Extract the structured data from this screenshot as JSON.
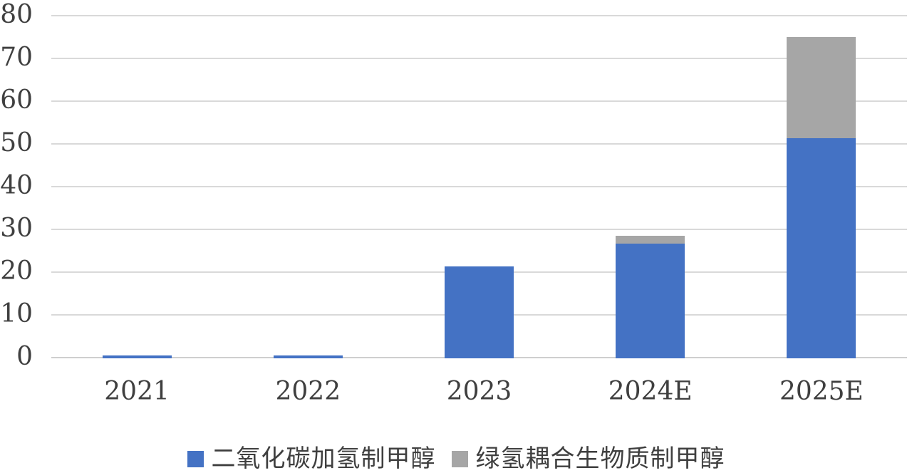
{
  "chart_data": {
    "type": "bar",
    "stacked": true,
    "title": "",
    "xlabel": "",
    "ylabel": "",
    "categories": [
      "2021",
      "2022",
      "2023",
      "2024E",
      "2025E"
    ],
    "series": [
      {
        "name": "二氧化碳加氢制甲醇",
        "color": "#4472C4",
        "values": [
          0.7,
          0.7,
          21.5,
          26.8,
          51.5
        ]
      },
      {
        "name": "绿氢耦合生物质制甲醇",
        "color": "#A6A6A6",
        "values": [
          0,
          0,
          0,
          1.8,
          23.6
        ]
      }
    ],
    "totals": [
      0.7,
      0.7,
      21.5,
      28.6,
      75.1
    ],
    "ylim": [
      0,
      80
    ],
    "yticks": [
      0,
      10,
      20,
      30,
      40,
      50,
      60,
      70,
      80
    ],
    "grid": true,
    "gridline_color": "#D9D9D9",
    "legend_position": "bottom"
  },
  "colors": {
    "background": "#FFFFFF",
    "text": "#3F3F3F",
    "series_blue": "#4472C4",
    "series_gray": "#A6A6A6",
    "gridline": "#D9D9D9"
  }
}
